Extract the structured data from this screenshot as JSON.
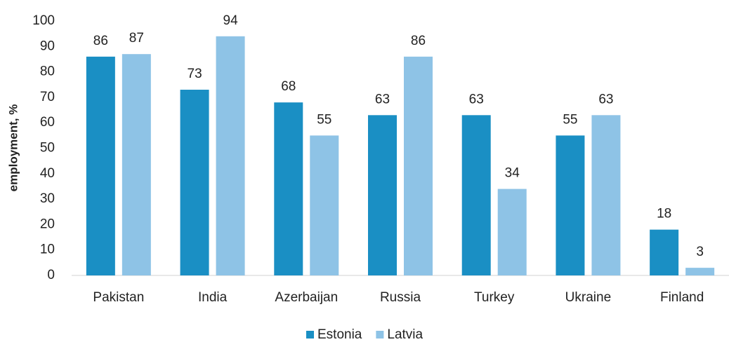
{
  "chart_data": {
    "type": "bar",
    "y_label": "employment, %",
    "categories": [
      "Pakistan",
      "India",
      "Azerbaijan",
      "Russia",
      "Turkey",
      "Ukraine",
      "Finland"
    ],
    "series": [
      {
        "name": "Estonia",
        "color": "#1a8fc4",
        "values": [
          86,
          73,
          68,
          63,
          63,
          55,
          18
        ]
      },
      {
        "name": "Latvia",
        "color": "#8ec3e6",
        "values": [
          87,
          94,
          55,
          86,
          34,
          63,
          3
        ]
      }
    ],
    "ylim": [
      0,
      100
    ],
    "yticks": [
      0,
      10,
      20,
      30,
      40,
      50,
      60,
      70,
      80,
      90,
      100
    ],
    "grid": false,
    "legend": "bottom"
  }
}
